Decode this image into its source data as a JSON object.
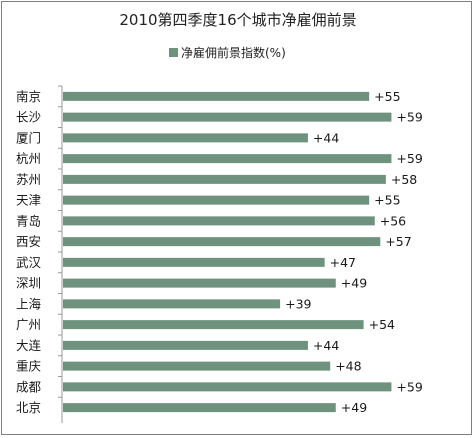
{
  "chart_data": {
    "type": "bar",
    "orientation": "horizontal",
    "title": "2010第四季度16个城市净雇佣前景",
    "legend": {
      "label": "净雇佣前景指数(%)",
      "placement": "top"
    },
    "categories": [
      "南京",
      "长沙",
      "厦门",
      "杭州",
      "苏州",
      "天津",
      "青岛",
      "西安",
      "武汉",
      "深圳",
      "上海",
      "广州",
      "大连",
      "重庆",
      "成都",
      "北京"
    ],
    "values": [
      55,
      59,
      44,
      59,
      58,
      55,
      56,
      57,
      47,
      49,
      39,
      54,
      44,
      48,
      59,
      49
    ],
    "value_labels": [
      "+55",
      "+59",
      "+44",
      "+59",
      "+58",
      "+55",
      "+56",
      "+57",
      "+47",
      "+49",
      "+39",
      "+54",
      "+44",
      "+48",
      "+59",
      "+49"
    ],
    "series_color": "#6e927d",
    "xlim": [
      0,
      60
    ],
    "grid": false,
    "axis_color": "#999999"
  }
}
